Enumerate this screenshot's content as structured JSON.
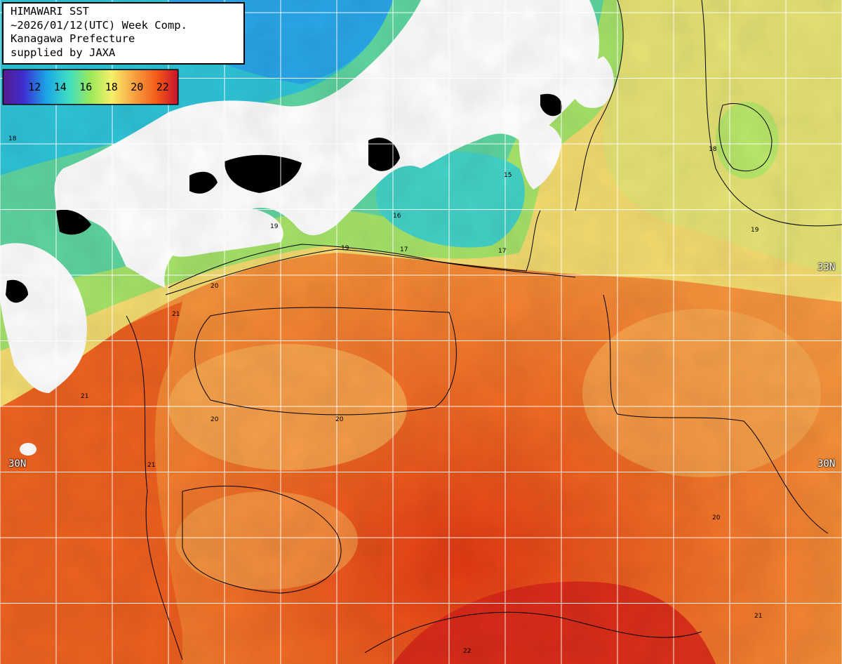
{
  "title": {
    "line1": "HIMAWARI SST",
    "line2": "~2026/01/12(UTC) Week Comp.",
    "line3": "Kanagawa Prefecture",
    "line4": "supplied by JAXA"
  },
  "legend": {
    "ticks": [
      "12",
      "14",
      "16",
      "18",
      "20",
      "22"
    ],
    "gradient_stops": [
      "#5a1a8a",
      "#3b2fd0",
      "#1aa6e6",
      "#3fe0c0",
      "#9be85a",
      "#f6f06a",
      "#f8a040",
      "#f25a18",
      "#c8102e"
    ]
  },
  "grid_labels": {
    "lat_33": "33N",
    "lat_30": "30N"
  },
  "contour_labels": [
    "18",
    "19",
    "19",
    "17",
    "20",
    "21",
    "20",
    "21",
    "20",
    "21",
    "22",
    "21",
    "16",
    "15",
    "17",
    "20",
    "19",
    "18"
  ],
  "land_color": "#ffffff",
  "coast_fill_color": "#000000"
}
